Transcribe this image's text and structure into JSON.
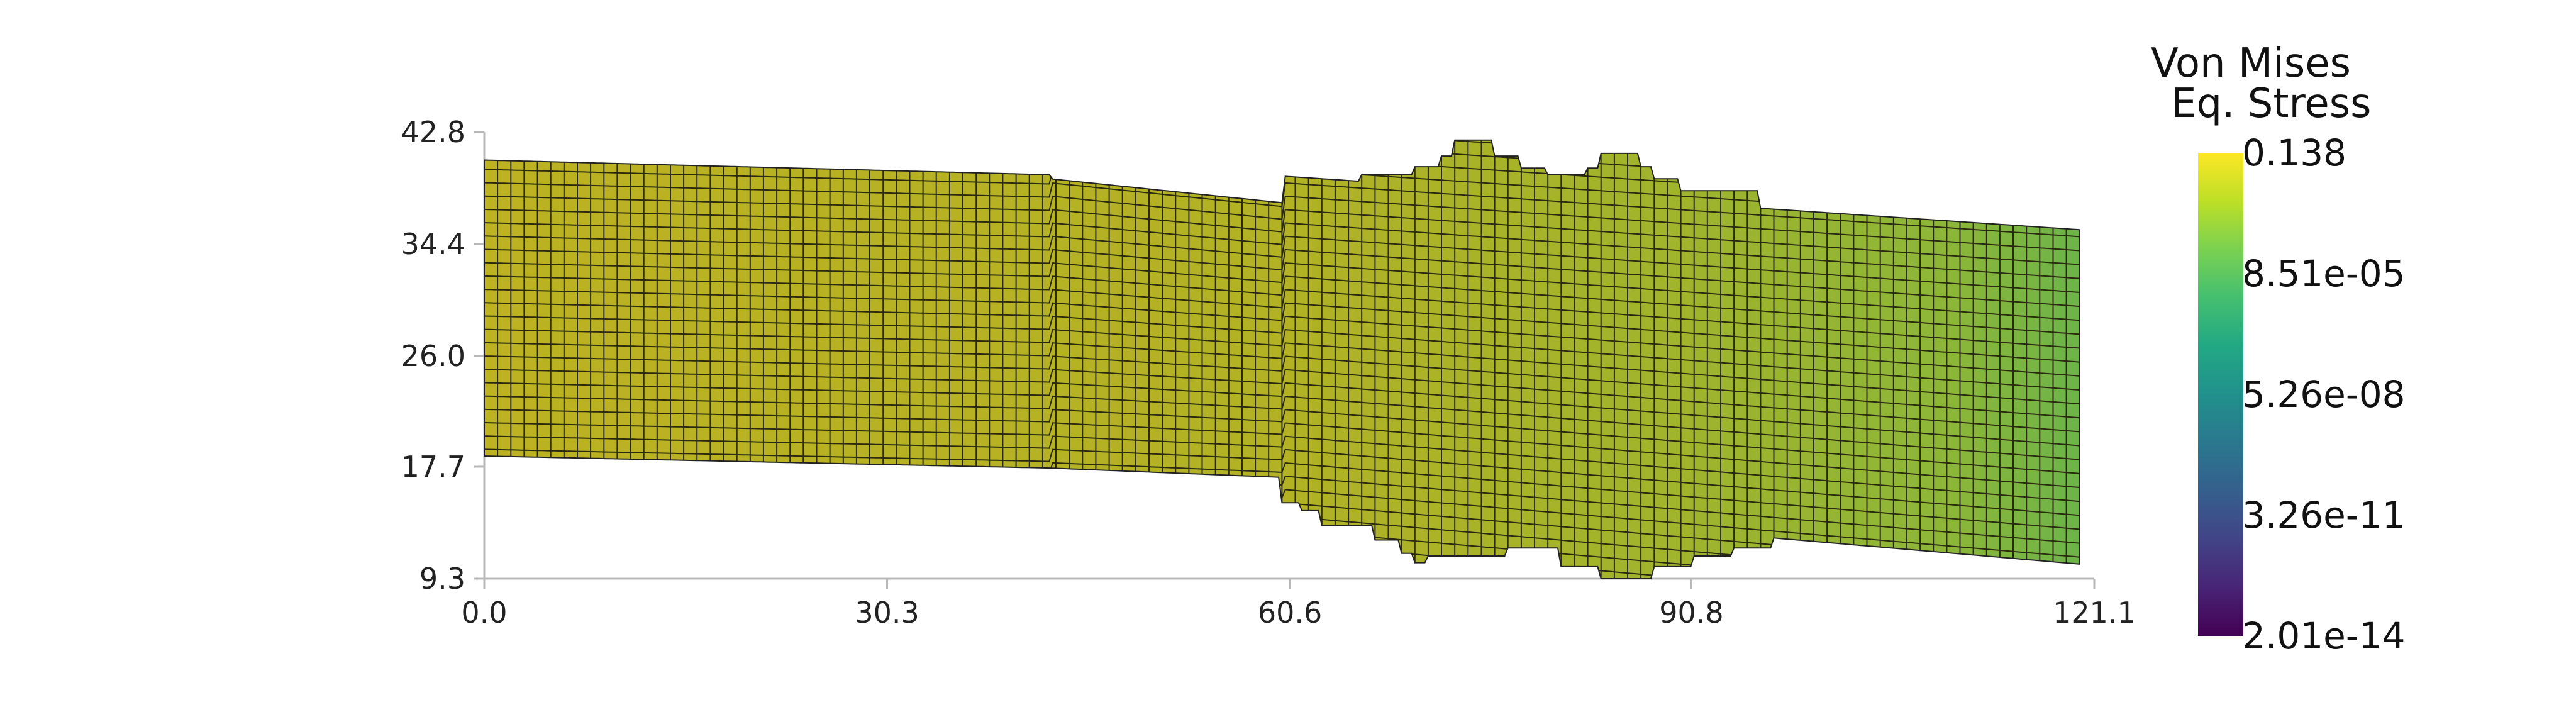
{
  "chart_data": {
    "type": "heatmap",
    "title": "",
    "xlabel": "",
    "ylabel": "",
    "xlim": [
      0.0,
      121.1
    ],
    "ylim": [
      9.3,
      42.8
    ],
    "x_ticks": [
      "0.0",
      "30.3",
      "60.6",
      "90.8",
      "121.1"
    ],
    "y_ticks": [
      "9.3",
      "17.7",
      "26.0",
      "34.4",
      "42.8"
    ],
    "colorbar": {
      "title_lines": [
        "Von Mises",
        "Eq. Stress"
      ],
      "tick_labels": [
        "0.138",
        "8.51e-05",
        "5.26e-08",
        "3.26e-11",
        "2.01e-14"
      ],
      "colormap": "viridis",
      "scale": "log",
      "range": [
        2.01e-14,
        0.138
      ]
    },
    "mesh": {
      "description_colors": {
        "dominant": "#b8b020",
        "right_end": "#6cb848",
        "grid_line": "#1a1a1a"
      },
      "cell_size": 1.0,
      "segments": [
        {
          "x": [
            0.0,
            42.5
          ],
          "bottom_left": 18.5,
          "bottom_right": 17.6,
          "top_left": 40.7,
          "top_right": 39.6
        },
        {
          "x": [
            42.5,
            60.0
          ],
          "bottom_left": 17.6,
          "bottom_right": 16.9,
          "top_left": 39.3,
          "top_right": 37.5
        },
        {
          "x": [
            60.0,
            121.1
          ],
          "bottom_left": 15.5,
          "bottom_right": 10.3,
          "top_left": 39.5,
          "top_right": 35.4
        }
      ],
      "top_bumps": [
        {
          "x": [
            61.5,
            63.0
          ],
          "y": 38.0
        },
        {
          "x": [
            63.0,
            66.0
          ],
          "y": 39.1
        },
        {
          "x": [
            66.0,
            70.0
          ],
          "y": 39.6
        },
        {
          "x": [
            70.0,
            72.0
          ],
          "y": 40.2
        },
        {
          "x": [
            72.0,
            73.0
          ],
          "y": 41.0
        },
        {
          "x": [
            73.0,
            76.0
          ],
          "y": 42.2
        },
        {
          "x": [
            76.0,
            78.0
          ],
          "y": 41.0
        },
        {
          "x": [
            78.0,
            80.0
          ],
          "y": 40.1
        },
        {
          "x": [
            80.0,
            83.0
          ],
          "y": 39.6
        },
        {
          "x": [
            83.0,
            84.0
          ],
          "y": 40.1
        },
        {
          "x": [
            84.0,
            87.0
          ],
          "y": 41.2
        },
        {
          "x": [
            87.0,
            88.0
          ],
          "y": 40.2
        },
        {
          "x": [
            88.0,
            90.0
          ],
          "y": 39.3
        },
        {
          "x": [
            90.0,
            96.0
          ],
          "y": 38.4
        }
      ],
      "bottom_bumps": [
        {
          "x": [
            60.0,
            61.5
          ],
          "y": 15.0
        },
        {
          "x": [
            61.5,
            63.0
          ],
          "y": 14.4
        },
        {
          "x": [
            63.0,
            67.0
          ],
          "y": 13.3
        },
        {
          "x": [
            67.0,
            69.0
          ],
          "y": 12.2
        },
        {
          "x": [
            69.0,
            70.0
          ],
          "y": 11.2
        },
        {
          "x": [
            70.0,
            71.0
          ],
          "y": 10.5
        },
        {
          "x": [
            71.0,
            77.0
          ],
          "y": 11.0
        },
        {
          "x": [
            77.0,
            81.0
          ],
          "y": 11.6
        },
        {
          "x": [
            81.0,
            84.0
          ],
          "y": 10.2
        },
        {
          "x": [
            84.0,
            88.0
          ],
          "y": 9.3
        },
        {
          "x": [
            88.0,
            91.0
          ],
          "y": 10.2
        },
        {
          "x": [
            91.0,
            94.0
          ],
          "y": 11.0
        },
        {
          "x": [
            94.0,
            97.0
          ],
          "y": 11.6
        }
      ]
    }
  }
}
